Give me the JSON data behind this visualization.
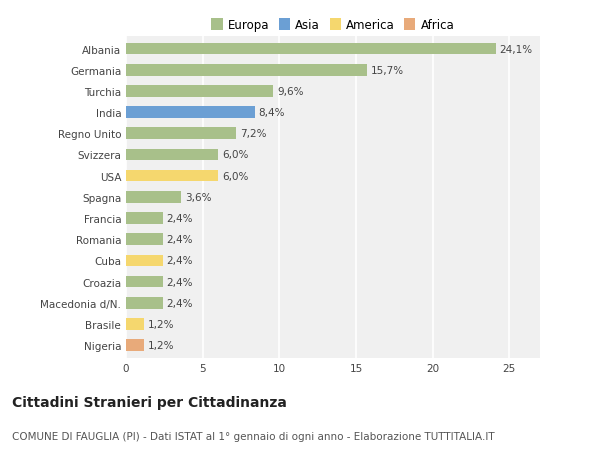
{
  "categories": [
    "Albania",
    "Germania",
    "Turchia",
    "India",
    "Regno Unito",
    "Svizzera",
    "USA",
    "Spagna",
    "Francia",
    "Romania",
    "Cuba",
    "Croazia",
    "Macedonia d/N.",
    "Brasile",
    "Nigeria"
  ],
  "values": [
    24.1,
    15.7,
    9.6,
    8.4,
    7.2,
    6.0,
    6.0,
    3.6,
    2.4,
    2.4,
    2.4,
    2.4,
    2.4,
    1.2,
    1.2
  ],
  "labels": [
    "24,1%",
    "15,7%",
    "9,6%",
    "8,4%",
    "7,2%",
    "6,0%",
    "6,0%",
    "3,6%",
    "2,4%",
    "2,4%",
    "2,4%",
    "2,4%",
    "2,4%",
    "1,2%",
    "1,2%"
  ],
  "continents": [
    "Europa",
    "Europa",
    "Europa",
    "Asia",
    "Europa",
    "Europa",
    "America",
    "Europa",
    "Europa",
    "Europa",
    "America",
    "Europa",
    "Europa",
    "America",
    "Africa"
  ],
  "continent_colors": {
    "Europa": "#a8c08a",
    "Asia": "#6b9fd4",
    "America": "#f5d76e",
    "Africa": "#e8aa7a"
  },
  "legend_order": [
    "Europa",
    "Asia",
    "America",
    "Africa"
  ],
  "legend_colors": [
    "#a8c08a",
    "#6b9fd4",
    "#f5d76e",
    "#e8aa7a"
  ],
  "title": "Cittadini Stranieri per Cittadinanza",
  "subtitle": "COMUNE DI FAUGLIA (PI) - Dati ISTAT al 1° gennaio di ogni anno - Elaborazione TUTTITALIA.IT",
  "xlim": [
    0,
    27
  ],
  "xticks": [
    0,
    5,
    10,
    15,
    20,
    25
  ],
  "background_color": "#ffffff",
  "plot_bg_color": "#f0f0f0",
  "grid_color": "#ffffff",
  "bar_height": 0.55,
  "title_fontsize": 10,
  "subtitle_fontsize": 7.5,
  "label_fontsize": 7.5,
  "tick_fontsize": 7.5,
  "legend_fontsize": 8.5
}
